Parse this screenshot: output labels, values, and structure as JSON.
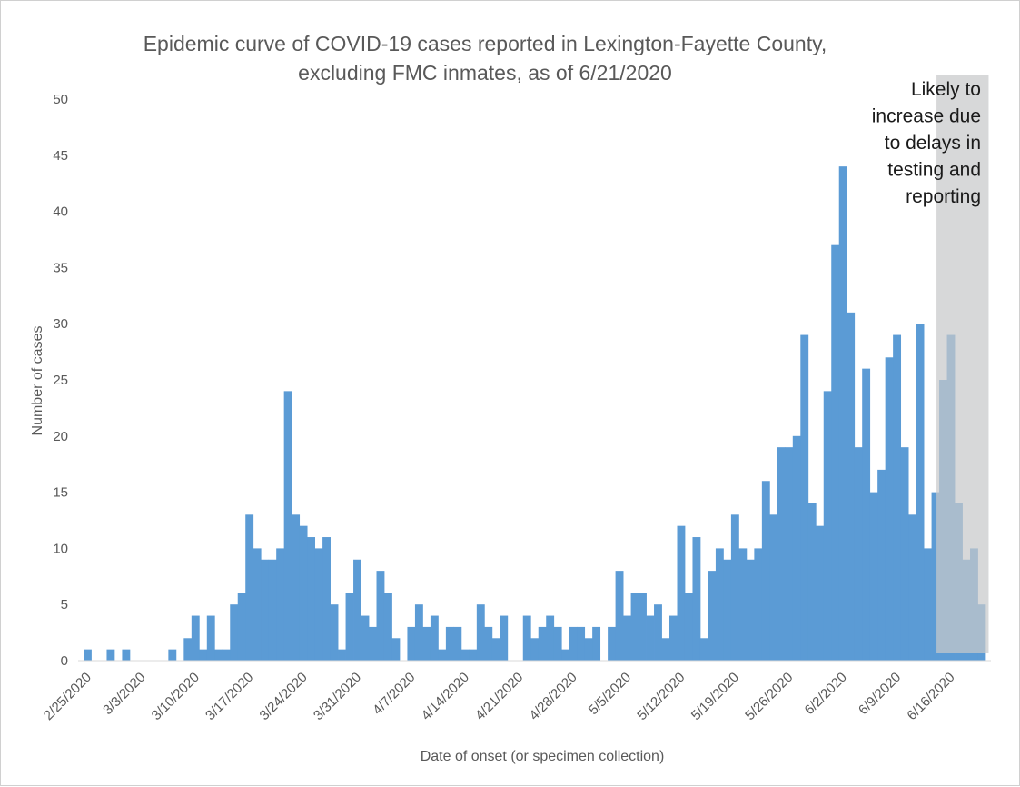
{
  "chart_data": {
    "type": "bar",
    "title_lines": [
      "Epidemic curve of COVID-19 cases reported in Lexington-Fayette County,",
      "excluding FMC inmates, as of 6/21/2020"
    ],
    "xlabel": "Date of onset (or specimen collection)",
    "ylabel": "Number of cases",
    "ylim": [
      0,
      50
    ],
    "yticks": [
      0,
      5,
      10,
      15,
      20,
      25,
      30,
      35,
      40,
      45,
      50
    ],
    "grid": false,
    "start_date": "2/25/2020",
    "x_tick_labels": [
      "2/25/2020",
      "3/3/2020",
      "3/10/2020",
      "3/17/2020",
      "3/24/2020",
      "3/31/2020",
      "4/7/2020",
      "4/14/2020",
      "4/21/2020",
      "4/28/2020",
      "5/5/2020",
      "5/12/2020",
      "5/19/2020",
      "5/26/2020",
      "6/2/2020",
      "6/9/2020",
      "6/16/2020"
    ],
    "values": [
      1,
      0,
      0,
      1,
      0,
      1,
      0,
      0,
      0,
      0,
      0,
      1,
      0,
      2,
      4,
      1,
      4,
      1,
      1,
      5,
      6,
      13,
      10,
      9,
      9,
      10,
      24,
      13,
      12,
      11,
      10,
      11,
      5,
      1,
      6,
      9,
      4,
      3,
      8,
      6,
      2,
      0,
      3,
      5,
      3,
      4,
      1,
      3,
      3,
      1,
      1,
      5,
      3,
      2,
      4,
      0,
      0,
      4,
      2,
      3,
      4,
      3,
      1,
      3,
      3,
      2,
      3,
      0,
      3,
      8,
      4,
      6,
      6,
      4,
      5,
      2,
      4,
      12,
      6,
      11,
      2,
      8,
      10,
      9,
      13,
      10,
      9,
      10,
      16,
      13,
      19,
      19,
      20,
      29,
      14,
      12,
      24,
      37,
      44,
      31,
      19,
      26,
      15,
      17,
      27,
      29,
      19,
      13,
      30,
      10,
      15,
      25,
      29,
      14,
      9,
      10,
      5
    ],
    "bar_color": "#5b9bd5",
    "shaded_region": {
      "start_date": "6/15/2020",
      "end_date": "6/21/2020",
      "color": "#c8c9ca",
      "opacity": 0.72,
      "annotation": [
        "Likely to",
        "increase due",
        "to delays in",
        "testing and",
        "reporting"
      ]
    }
  }
}
